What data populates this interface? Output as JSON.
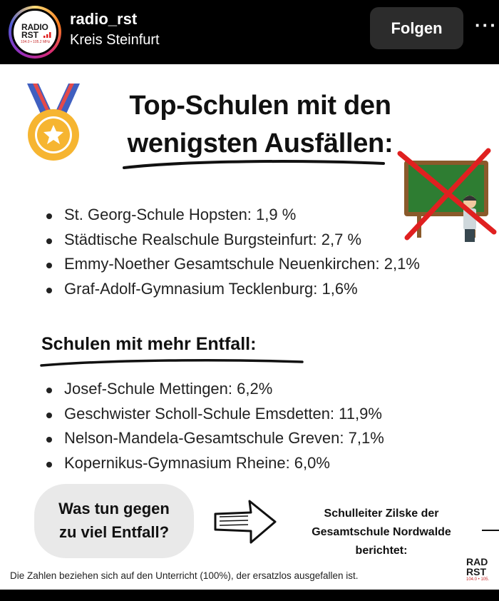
{
  "header": {
    "username": "radio_rst",
    "location": "Kreis Steinfurt",
    "follow_label": "Folgen",
    "more_label": "···",
    "avatar_logo": {
      "line1": "RADIO",
      "line2": "RST",
      "freq": "104.0 • 105.2 MHz"
    }
  },
  "post": {
    "title_line1": "Top-Schulen mit den",
    "title_line2": "wenigsten Ausfällen:",
    "top_schools": [
      "St. Georg-Schule Hopsten: 1,9 %",
      "Städtische Realschule Burgsteinfurt: 2,7 %",
      "Emmy-Noether Gesamtschule Neuenkirchen: 2,1%",
      "Graf-Adolf-Gymnasium Tecklenburg: 1,6%"
    ],
    "section2_title": "Schulen mit mehr Entfall:",
    "more_schools": [
      "Josef-Schule Mettingen: 6,2%",
      "Geschwister Scholl-Schule Emsdetten: 11,9%",
      "Nelson-Mandela-Gesamtschule Greven: 7,1%",
      "Kopernikus-Gymnasium Rheine: 6,0%"
    ],
    "question_line1": "Was tun gegen",
    "question_line2": "zu viel Entfall?",
    "principal_line1": "Schulleiter Zilske der",
    "principal_line2": "Gesamtschule Nordwalde",
    "principal_line3": "berichtet:",
    "footnote": "Die Zahlen beziehen sich auf den Unterricht (100%), der ersatzlos ausgefallen ist.",
    "corner_logo": {
      "line1": "RAD",
      "line2": "RST",
      "freq": "104.0 • 105."
    }
  },
  "colors": {
    "accent_red": "#e02020",
    "board_green": "#2e7d32",
    "follow_button_bg": "#2c2c2c",
    "medal_gold": "#f6b531"
  },
  "icons": [
    "medal-icon",
    "crossed-blackboard-icon",
    "arrow-right-icon",
    "more-options-icon"
  ]
}
